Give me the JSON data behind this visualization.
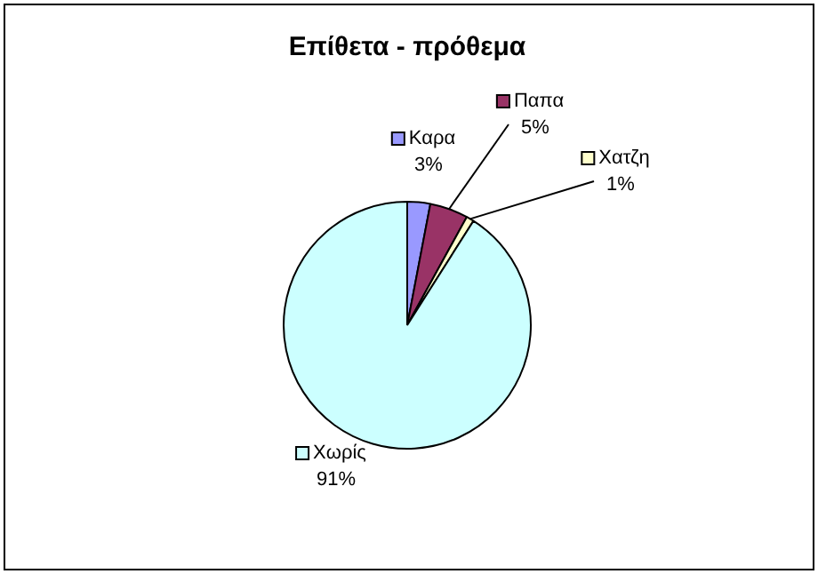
{
  "chart_data": {
    "type": "pie",
    "title": "Επίθετα - πρόθεμα",
    "categories": [
      "Καρα",
      "Παπα",
      "Χατζη",
      "Χωρίς"
    ],
    "values": [
      3,
      5,
      1,
      91
    ],
    "colors": [
      "#9999ff",
      "#993366",
      "#ffffcc",
      "#ccffff"
    ],
    "value_labels": [
      "3%",
      "5%",
      "1%",
      "91%"
    ],
    "legend": "top right"
  }
}
